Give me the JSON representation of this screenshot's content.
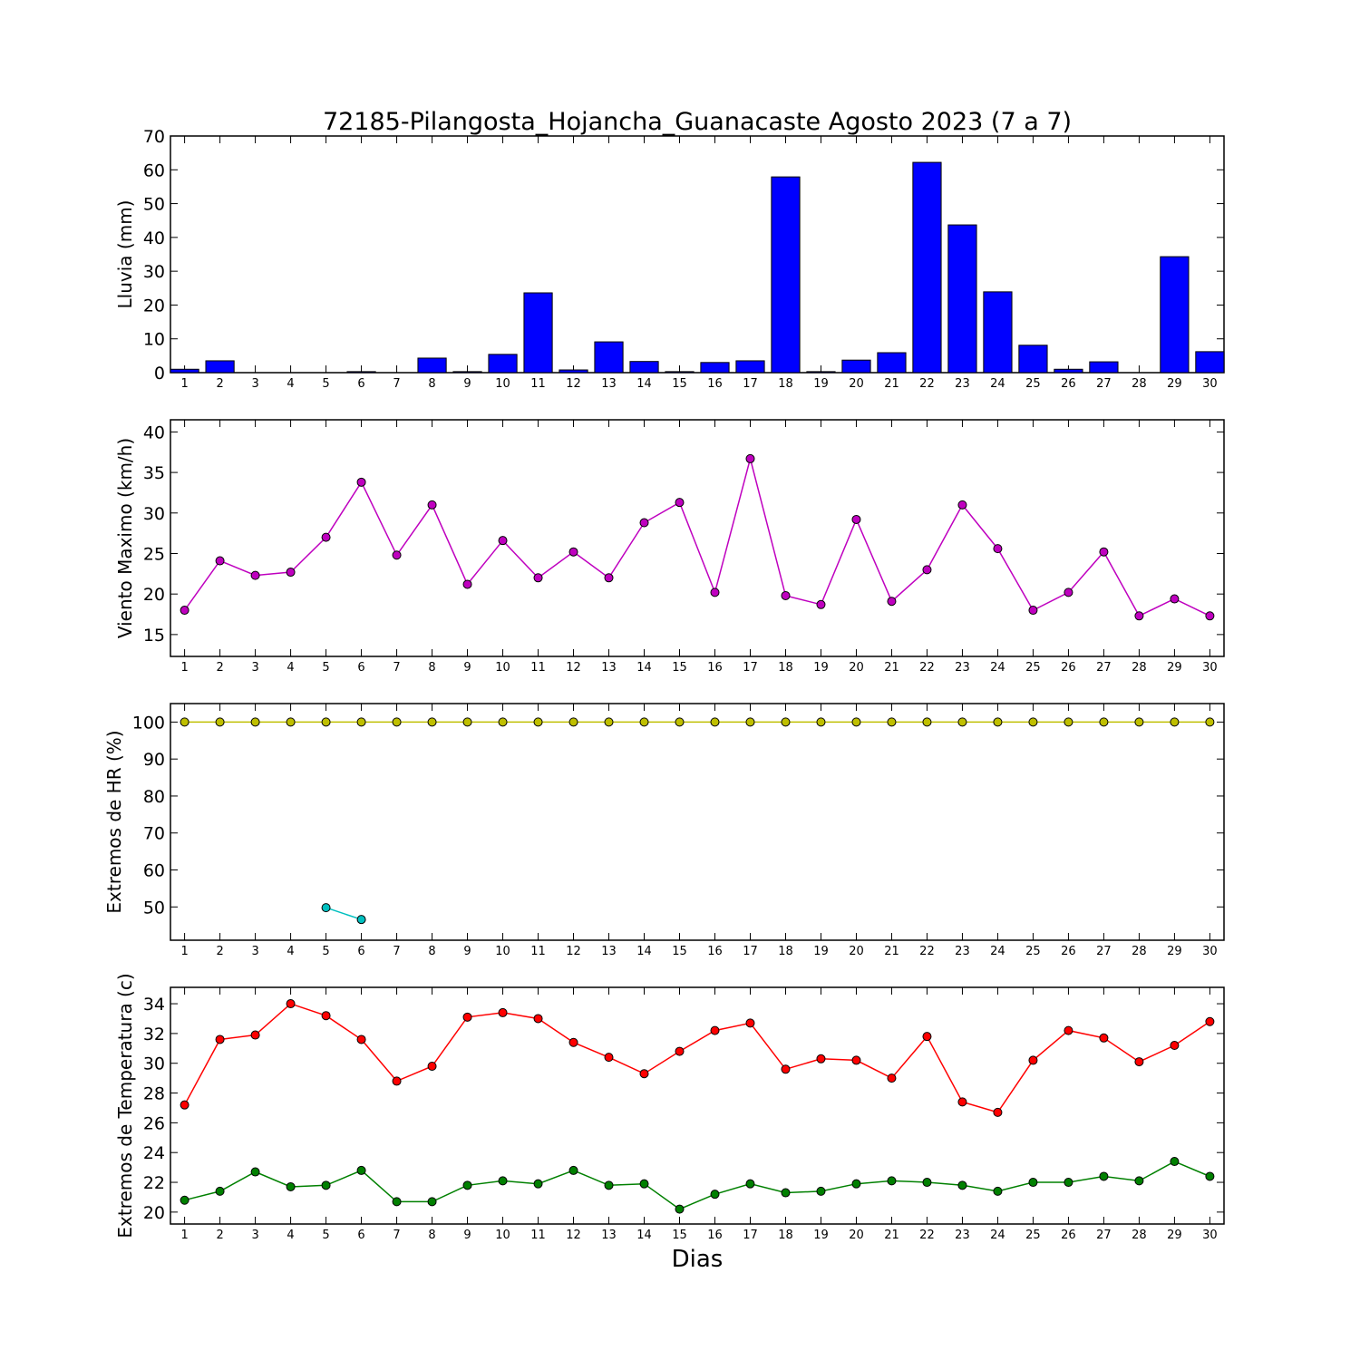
{
  "title": "72185-Pilangosta_Hojancha_Guanacaste Agosto 2023  (7 a 7)",
  "xlabel": "Dias",
  "colors": {
    "bar": "#0000ff",
    "wind": "#bf00bf",
    "hr_max": "#bfbf00",
    "hr_min": "#00bfbf",
    "temp_max": "#ff0000",
    "temp_min": "#008000"
  },
  "chart_data": [
    {
      "type": "bar",
      "ylabel": "Lluvia (mm)",
      "ylim": [
        0,
        70
      ],
      "yticks": [
        0,
        10,
        20,
        30,
        40,
        50,
        60,
        70
      ],
      "x": [
        1,
        2,
        3,
        4,
        5,
        6,
        7,
        8,
        9,
        10,
        11,
        12,
        13,
        14,
        15,
        16,
        17,
        18,
        19,
        20,
        21,
        22,
        23,
        24,
        25,
        26,
        27,
        28,
        29,
        30
      ],
      "values": [
        1.0,
        3.5,
        0,
        0,
        0,
        0.3,
        0,
        4.3,
        0.3,
        5.4,
        23.6,
        0.8,
        9.1,
        3.3,
        0.3,
        3.0,
        3.5,
        57.9,
        0.3,
        3.7,
        5.9,
        62.2,
        43.7,
        23.9,
        8.1,
        1.0,
        3.2,
        0,
        34.3,
        6.2
      ],
      "grid": false
    },
    {
      "type": "line",
      "ylabel": "Viento Maximo (km/h)",
      "ylim": [
        12.3,
        41.5
      ],
      "yticks": [
        15,
        20,
        25,
        30,
        35,
        40
      ],
      "x": [
        1,
        2,
        3,
        4,
        5,
        6,
        7,
        8,
        9,
        10,
        11,
        12,
        13,
        14,
        15,
        16,
        17,
        18,
        19,
        20,
        21,
        22,
        23,
        24,
        25,
        26,
        27,
        28,
        29,
        30
      ],
      "series": [
        {
          "values": [
            18.0,
            24.1,
            22.3,
            22.7,
            27.0,
            33.8,
            24.8,
            31.0,
            21.2,
            26.6,
            22.0,
            25.2,
            22.0,
            28.8,
            31.3,
            20.2,
            36.7,
            19.8,
            18.7,
            29.2,
            19.1,
            23.0,
            31.0,
            25.6,
            18.0,
            20.2,
            25.2,
            17.3,
            19.4,
            17.3
          ]
        }
      ],
      "grid": false
    },
    {
      "type": "line",
      "ylabel": "Extremos de HR (%)",
      "ylim": [
        41,
        105
      ],
      "yticks": [
        50,
        60,
        70,
        80,
        90,
        100
      ],
      "x": [
        1,
        2,
        3,
        4,
        5,
        6,
        7,
        8,
        9,
        10,
        11,
        12,
        13,
        14,
        15,
        16,
        17,
        18,
        19,
        20,
        21,
        22,
        23,
        24,
        25,
        26,
        27,
        28,
        29,
        30
      ],
      "series": [
        {
          "values": [
            100,
            100,
            100,
            100,
            100,
            100,
            100,
            100,
            100,
            100,
            100,
            100,
            100,
            100,
            100,
            100,
            100,
            100,
            100,
            100,
            100,
            100,
            100,
            100,
            100,
            100,
            100,
            100,
            100,
            100
          ]
        },
        {
          "x": [
            5,
            6
          ],
          "values": [
            49.8,
            46.6
          ]
        }
      ],
      "grid": false
    },
    {
      "type": "line",
      "ylabel": "Extremos de Temperatura (c)",
      "ylim": [
        19.2,
        35.1
      ],
      "yticks": [
        20,
        22,
        24,
        26,
        28,
        30,
        32,
        34
      ],
      "x": [
        1,
        2,
        3,
        4,
        5,
        6,
        7,
        8,
        9,
        10,
        11,
        12,
        13,
        14,
        15,
        16,
        17,
        18,
        19,
        20,
        21,
        22,
        23,
        24,
        25,
        26,
        27,
        28,
        29,
        30
      ],
      "series": [
        {
          "values": [
            27.2,
            31.6,
            31.9,
            34.0,
            33.2,
            31.6,
            28.8,
            29.8,
            33.1,
            33.4,
            33.0,
            31.4,
            30.4,
            29.3,
            30.8,
            32.2,
            32.7,
            29.6,
            30.3,
            30.2,
            29.0,
            31.8,
            27.4,
            26.7,
            30.2,
            32.2,
            31.7,
            30.1,
            31.2,
            32.8
          ]
        },
        {
          "values": [
            20.8,
            21.4,
            22.7,
            21.7,
            21.8,
            22.8,
            20.7,
            20.7,
            21.8,
            22.1,
            21.9,
            22.8,
            21.8,
            21.9,
            20.2,
            21.2,
            21.9,
            21.3,
            21.4,
            21.9,
            22.1,
            22.0,
            21.8,
            21.4,
            22.0,
            22.0,
            22.4,
            22.1,
            23.4,
            22.4
          ]
        }
      ],
      "grid": false
    }
  ]
}
